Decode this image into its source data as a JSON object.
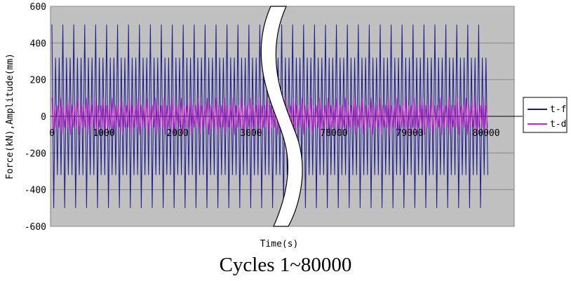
{
  "chart_data": {
    "type": "line",
    "xlabel": "Time(s)",
    "ylabel": "Force(kN),Amplitude(mm)",
    "ylim": [
      -600,
      600
    ],
    "yticks": [
      "600",
      "400",
      "200",
      "0",
      "-200",
      "-400",
      "-600"
    ],
    "xticks_left": [
      "0",
      "1000",
      "2000",
      "3000"
    ],
    "xticks_right": [
      "78000",
      "79000",
      "80000"
    ],
    "x_break": true,
    "grid": "horizontal",
    "legend_position": "right",
    "series": [
      {
        "name": "t-f",
        "color": "#1a1a8c",
        "amplitude": 500,
        "description_values": {
          "max": 500,
          "min": -500,
          "secondary_peaks": [
            320,
            -320
          ]
        }
      },
      {
        "name": "t-d",
        "color": "#d11bd6",
        "amplitude": 100,
        "description_values": {
          "max": 100,
          "min": -100,
          "secondary_peaks": [
            60,
            -60
          ]
        }
      }
    ]
  },
  "caption": "Cycles 1~80000"
}
